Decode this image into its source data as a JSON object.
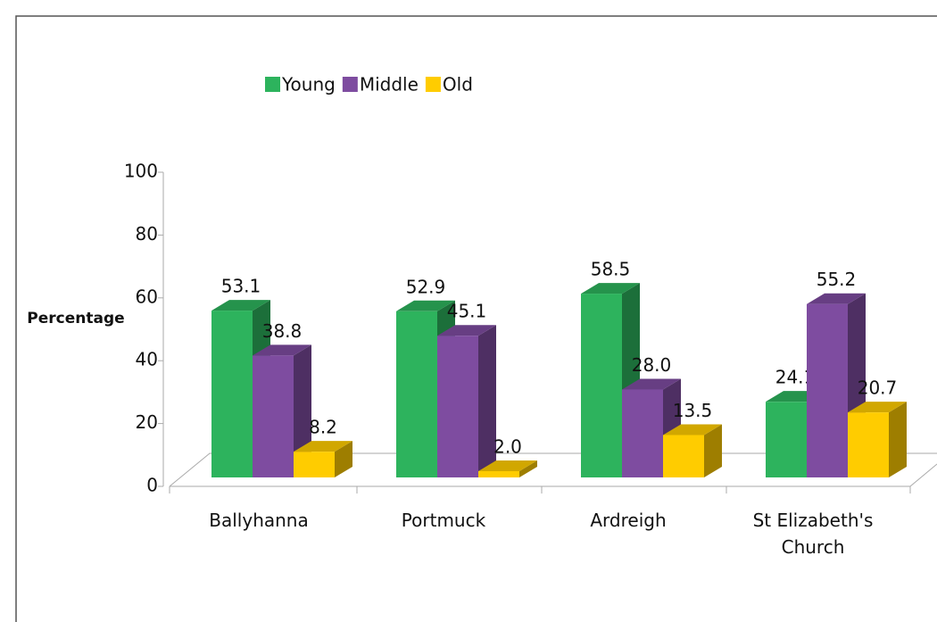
{
  "chart_data": {
    "type": "bar3d",
    "y_label": "Percentage",
    "categories": [
      "Ballyhanna",
      "Portmuck",
      "Ardreigh",
      "St Elizabeth's Church"
    ],
    "series": [
      {
        "name": "Young",
        "color": "#2db35d",
        "values": [
          53.1,
          52.9,
          58.5,
          24.1
        ],
        "value_labels": [
          "53.1",
          "52.9",
          "58.5",
          "24.1"
        ]
      },
      {
        "name": "Middle",
        "color": "#7e4ca0",
        "values": [
          38.8,
          45.1,
          28.0,
          55.2
        ],
        "value_labels": [
          "38.8",
          "45.1",
          "28.0",
          "55.2"
        ]
      },
      {
        "name": "Old",
        "color": "#ffcc00",
        "values": [
          8.2,
          2.0,
          13.5,
          20.7
        ],
        "value_labels": [
          "8.2",
          "2.0",
          "13.5",
          "20.7"
        ]
      }
    ],
    "ylim": [
      0,
      100
    ],
    "yticks": [
      0,
      20,
      40,
      60,
      80,
      100
    ],
    "legend": "top"
  }
}
